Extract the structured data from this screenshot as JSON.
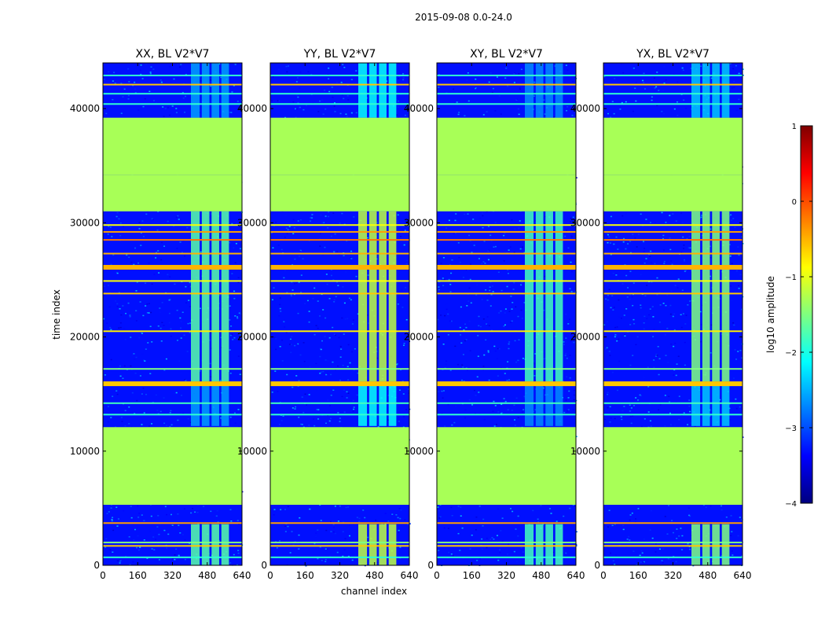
{
  "chart_data": {
    "type": "heatmap",
    "title": "2015-09-08 0.0-24.0",
    "xlabel": "channel index",
    "ylabel": "time index",
    "xlim": [
      0,
      640
    ],
    "ylim": [
      0,
      44000
    ],
    "x_ticks": [
      0,
      160,
      320,
      480,
      640
    ],
    "y_ticks": [
      0,
      10000,
      20000,
      30000,
      40000
    ],
    "colormap": "jet",
    "colorbar": {
      "label": "log10 amplitude",
      "min": -4,
      "max": 1,
      "ticks": [
        1,
        0,
        -1,
        -2,
        -3,
        -4
      ],
      "tick_labels": [
        "1",
        "0",
        "−1",
        "−2",
        "−3",
        "−4"
      ]
    },
    "background_log_amplitude": -3.3,
    "flagged_blocks": [
      {
        "t_start": 5300,
        "t_end": 12100,
        "value": -1.3
      },
      {
        "t_start": 31000,
        "t_end": 34200,
        "value": -1.3
      },
      {
        "t_start": 34200,
        "t_end": 39200,
        "value": -1.3
      }
    ],
    "active_band": {
      "channels": [
        [
          405,
          445
        ],
        [
          455,
          490
        ],
        [
          500,
          535
        ],
        [
          545,
          580
        ]
      ]
    },
    "panels": [
      {
        "title": "XX, BL V2*V7",
        "stripes": [
          {
            "t": 700,
            "v": -1.9
          },
          {
            "t": 1700,
            "v": -0.6
          },
          {
            "t": 2000,
            "v": -1.5
          },
          {
            "t": 3700,
            "v": -0.4
          },
          {
            "t": 13200,
            "v": -1.9
          },
          {
            "t": 14200,
            "v": -1.8
          },
          {
            "t": 15900,
            "v": -0.6
          },
          {
            "t": 17200,
            "v": -1.5
          },
          {
            "t": 20500,
            "v": -0.8
          },
          {
            "t": 23800,
            "v": -0.6
          },
          {
            "t": 24900,
            "v": -0.9
          },
          {
            "t": 26100,
            "v": -0.5
          },
          {
            "t": 27300,
            "v": -0.5
          },
          {
            "t": 28500,
            "v": -0.2
          },
          {
            "t": 29200,
            "v": -0.4
          },
          {
            "t": 29800,
            "v": -0.9
          },
          {
            "t": 32400,
            "v": -1.8
          },
          {
            "t": 33200,
            "v": -1.0
          },
          {
            "t": 40400,
            "v": -1.9
          },
          {
            "t": 41300,
            "v": -1.9
          },
          {
            "t": 42100,
            "v": -0.6
          },
          {
            "t": 42900,
            "v": -1.9
          }
        ],
        "band_level": -1.7
      },
      {
        "title": "YY, BL V2*V7",
        "stripes": [
          {
            "t": 700,
            "v": -1.9
          },
          {
            "t": 1700,
            "v": -0.6
          },
          {
            "t": 2000,
            "v": -1.5
          },
          {
            "t": 3700,
            "v": -0.4
          },
          {
            "t": 13200,
            "v": -1.9
          },
          {
            "t": 14200,
            "v": -1.8
          },
          {
            "t": 15900,
            "v": -0.6
          },
          {
            "t": 17200,
            "v": -1.5
          },
          {
            "t": 20500,
            "v": -0.8
          },
          {
            "t": 23800,
            "v": -0.6
          },
          {
            "t": 24900,
            "v": -0.9
          },
          {
            "t": 26100,
            "v": -0.5
          },
          {
            "t": 27300,
            "v": -0.5
          },
          {
            "t": 28500,
            "v": -0.2
          },
          {
            "t": 29200,
            "v": -0.4
          },
          {
            "t": 29800,
            "v": -0.9
          },
          {
            "t": 32400,
            "v": -1.8
          },
          {
            "t": 33200,
            "v": -1.0
          },
          {
            "t": 40400,
            "v": -1.9
          },
          {
            "t": 41300,
            "v": -1.9
          },
          {
            "t": 42100,
            "v": -0.6
          },
          {
            "t": 42900,
            "v": -1.9
          }
        ],
        "band_level": -1.2
      },
      {
        "title": "XY, BL V2*V7",
        "stripes": [
          {
            "t": 700,
            "v": -1.9
          },
          {
            "t": 1700,
            "v": -0.6
          },
          {
            "t": 2000,
            "v": -1.5
          },
          {
            "t": 3700,
            "v": -0.4
          },
          {
            "t": 13200,
            "v": -1.9
          },
          {
            "t": 14200,
            "v": -1.8
          },
          {
            "t": 15900,
            "v": -0.6
          },
          {
            "t": 17200,
            "v": -1.5
          },
          {
            "t": 20500,
            "v": -0.8
          },
          {
            "t": 23800,
            "v": -0.6
          },
          {
            "t": 24900,
            "v": -0.9
          },
          {
            "t": 26100,
            "v": -0.5
          },
          {
            "t": 27300,
            "v": -0.5
          },
          {
            "t": 28500,
            "v": -0.2
          },
          {
            "t": 29200,
            "v": -0.4
          },
          {
            "t": 29800,
            "v": -0.9
          },
          {
            "t": 32400,
            "v": -1.8
          },
          {
            "t": 33200,
            "v": -1.0
          },
          {
            "t": 40400,
            "v": -1.9
          },
          {
            "t": 41300,
            "v": -1.9
          },
          {
            "t": 42100,
            "v": -0.6
          },
          {
            "t": 42900,
            "v": -1.9
          }
        ],
        "band_level": -1.8
      },
      {
        "title": "YX, BL V2*V7",
        "stripes": [
          {
            "t": 700,
            "v": -1.9
          },
          {
            "t": 1700,
            "v": -0.6
          },
          {
            "t": 2000,
            "v": -1.5
          },
          {
            "t": 3700,
            "v": -0.4
          },
          {
            "t": 13200,
            "v": -1.9
          },
          {
            "t": 14200,
            "v": -1.8
          },
          {
            "t": 15900,
            "v": -0.6
          },
          {
            "t": 17200,
            "v": -1.5
          },
          {
            "t": 20500,
            "v": -0.8
          },
          {
            "t": 23800,
            "v": -0.6
          },
          {
            "t": 24900,
            "v": -0.9
          },
          {
            "t": 26100,
            "v": -0.5
          },
          {
            "t": 27300,
            "v": -0.5
          },
          {
            "t": 28500,
            "v": -0.2
          },
          {
            "t": 29200,
            "v": -0.4
          },
          {
            "t": 29800,
            "v": -0.9
          },
          {
            "t": 32400,
            "v": -1.8
          },
          {
            "t": 33200,
            "v": -1.0
          },
          {
            "t": 40400,
            "v": -1.9
          },
          {
            "t": 41300,
            "v": -1.9
          },
          {
            "t": 42100,
            "v": -0.6
          },
          {
            "t": 42900,
            "v": -1.9
          }
        ],
        "band_level": -1.5
      }
    ]
  },
  "colorbar_stops": [
    "#00007f",
    "#0000ff",
    "#007fff",
    "#00ffff",
    "#7fff7f",
    "#ffff00",
    "#ff7f00",
    "#ff0000",
    "#7f0000"
  ]
}
